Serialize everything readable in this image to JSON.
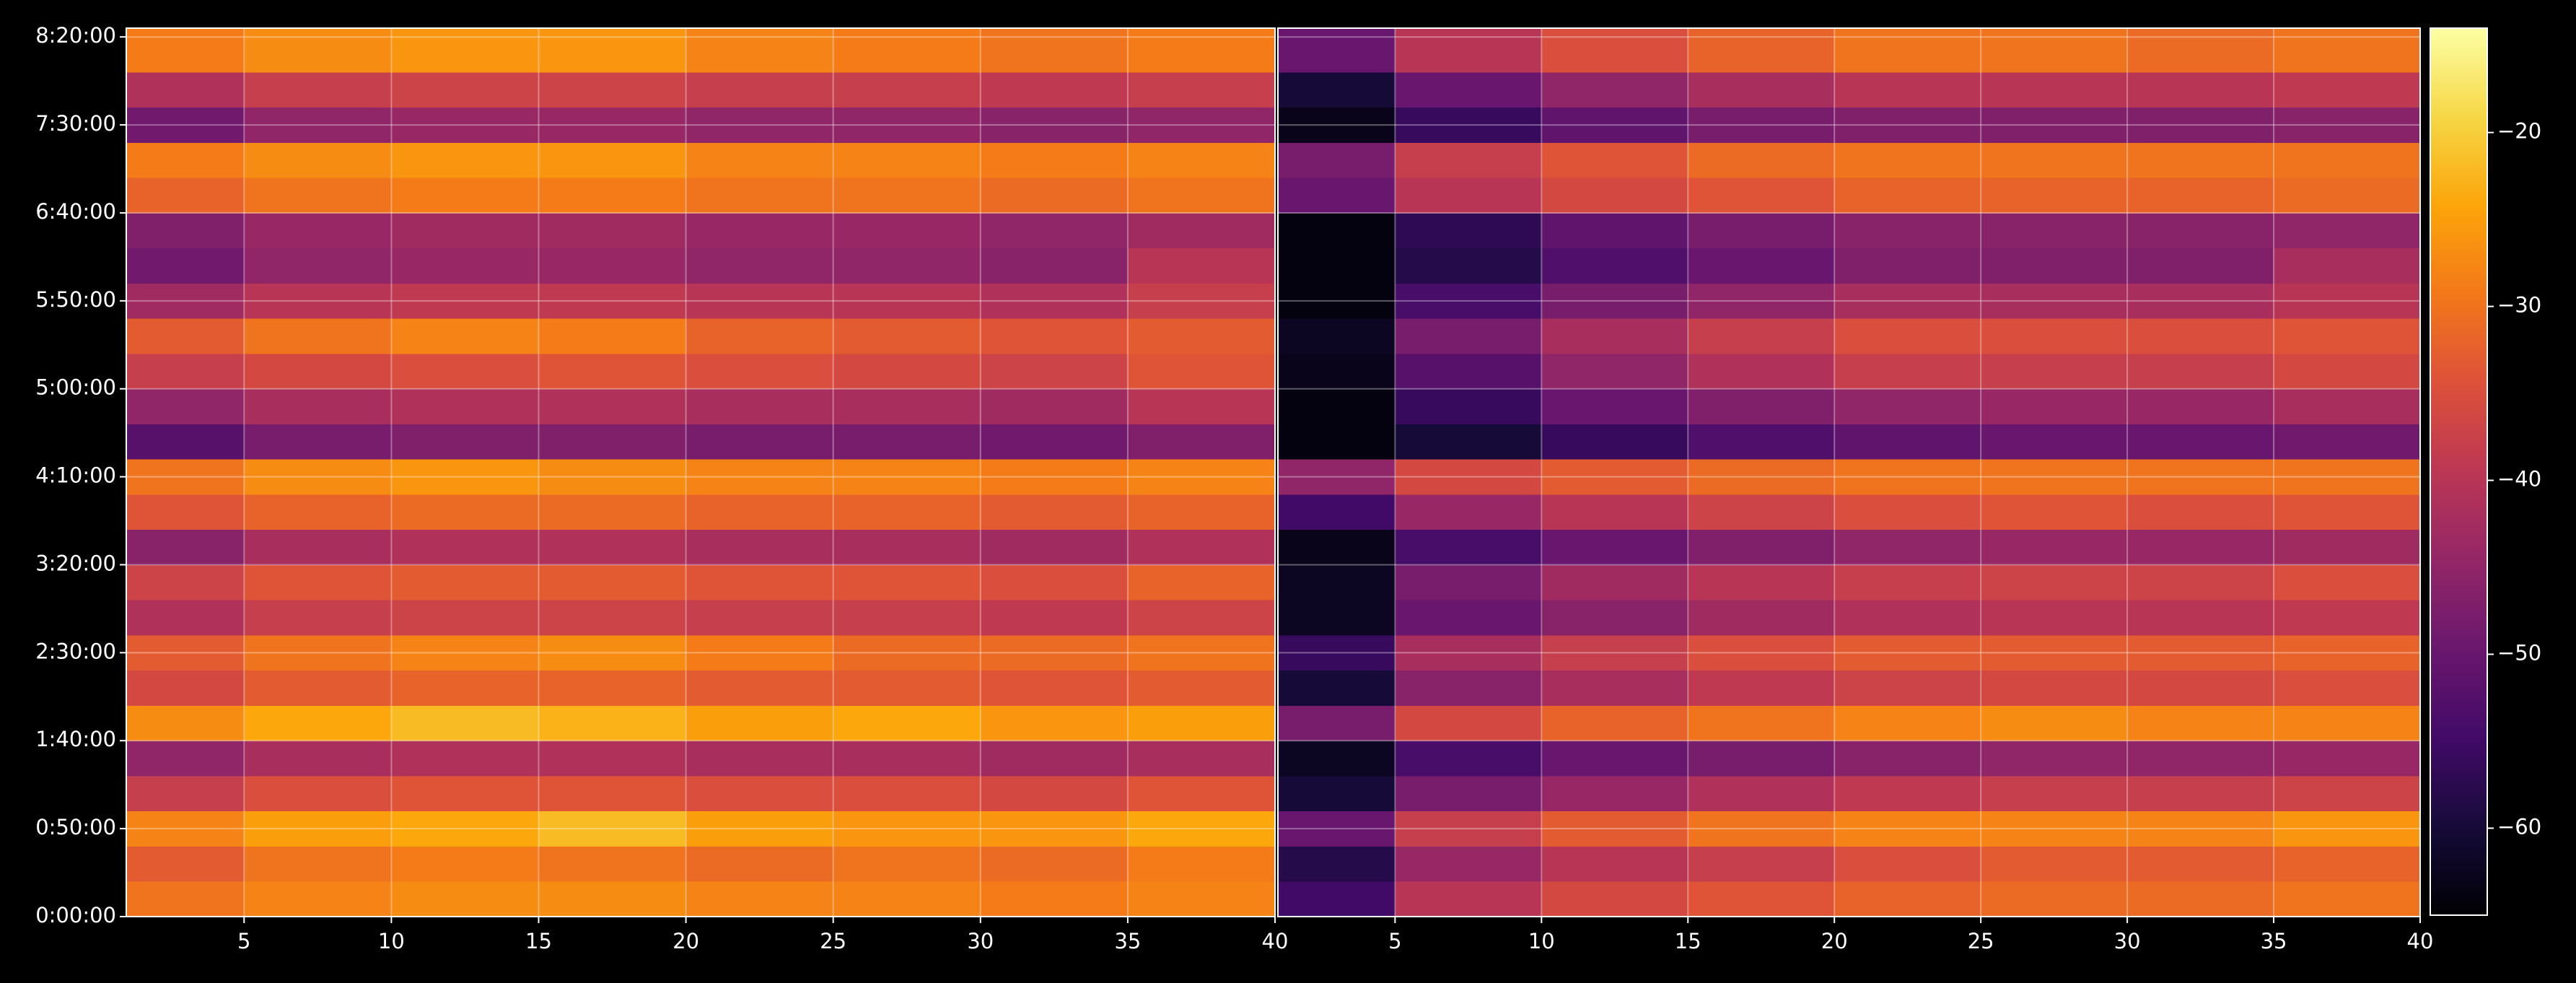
{
  "chart_data": {
    "type": "heatmap",
    "colormap": "inferno",
    "grid": true,
    "xlim": [
      1,
      40
    ],
    "xticks": [
      5,
      10,
      15,
      20,
      25,
      30,
      35,
      40
    ],
    "ylim": [
      0,
      30300
    ],
    "yticks": [
      {
        "value": 0,
        "label": "0:00:00"
      },
      {
        "value": 3000,
        "label": "0:50:00"
      },
      {
        "value": 6000,
        "label": "1:40:00"
      },
      {
        "value": 9000,
        "label": "2:30:00"
      },
      {
        "value": 12000,
        "label": "3:20:00"
      },
      {
        "value": 15000,
        "label": "4:10:00"
      },
      {
        "value": 18000,
        "label": "5:00:00"
      },
      {
        "value": 21000,
        "label": "5:50:00"
      },
      {
        "value": 24000,
        "label": "6:40:00"
      },
      {
        "value": 27000,
        "label": "7:30:00"
      },
      {
        "value": 30000,
        "label": "8:20:00"
      }
    ],
    "xbins": [
      1,
      5,
      10,
      15,
      20,
      25,
      30,
      35,
      40
    ],
    "ybins": [
      0,
      1200,
      2400,
      3600,
      4800,
      6000,
      7200,
      8400,
      9600,
      10800,
      12000,
      13200,
      14400,
      15600,
      16800,
      18000,
      19200,
      20400,
      21600,
      22800,
      24000,
      25200,
      26400,
      27600,
      28800,
      30300
    ],
    "panels": [
      {
        "values": [
          [
            -30,
            -28,
            -27,
            -27,
            -28,
            -28,
            -29,
            -28
          ],
          [
            -33,
            -30,
            -29,
            -30,
            -31,
            -30,
            -31,
            -29
          ],
          [
            -28,
            -25,
            -24,
            -22,
            -25,
            -26,
            -26,
            -24
          ],
          [
            -38,
            -35,
            -34,
            -34,
            -35,
            -35,
            -36,
            -34
          ],
          [
            -45,
            -42,
            -41,
            -41,
            -42,
            -42,
            -43,
            -42
          ],
          [
            -27,
            -24,
            -22,
            -23,
            -25,
            -24,
            -26,
            -25
          ],
          [
            -36,
            -33,
            -32,
            -32,
            -33,
            -33,
            -34,
            -33
          ],
          [
            -33,
            -30,
            -28,
            -27,
            -29,
            -31,
            -31,
            -30
          ],
          [
            -41,
            -38,
            -37,
            -37,
            -38,
            -38,
            -39,
            -37
          ],
          [
            -37,
            -34,
            -33,
            -33,
            -34,
            -34,
            -35,
            -32
          ],
          [
            -46,
            -42,
            -41,
            -41,
            -42,
            -42,
            -43,
            -41
          ],
          [
            -34,
            -32,
            -31,
            -31,
            -32,
            -32,
            -33,
            -32
          ],
          [
            -30,
            -27,
            -26,
            -27,
            -28,
            -28,
            -29,
            -28
          ],
          [
            -52,
            -48,
            -47,
            -47,
            -48,
            -48,
            -49,
            -47
          ],
          [
            -45,
            -42,
            -41,
            -41,
            -42,
            -42,
            -43,
            -40
          ],
          [
            -38,
            -36,
            -35,
            -34,
            -35,
            -36,
            -37,
            -34
          ],
          [
            -33,
            -30,
            -28,
            -29,
            -32,
            -33,
            -34,
            -33
          ],
          [
            -43,
            -40,
            -39,
            -39,
            -40,
            -40,
            -41,
            -38
          ],
          [
            -49,
            -45,
            -44,
            -44,
            -45,
            -45,
            -46,
            -40
          ],
          [
            -47,
            -44,
            -43,
            -43,
            -44,
            -44,
            -45,
            -43
          ],
          [
            -32,
            -30,
            -29,
            -29,
            -30,
            -30,
            -31,
            -30
          ],
          [
            -29,
            -27,
            -26,
            -26,
            -28,
            -28,
            -29,
            -28
          ],
          [
            -49,
            -45,
            -44,
            -44,
            -45,
            -45,
            -46,
            -45
          ],
          [
            -41,
            -38,
            -37,
            -37,
            -38,
            -38,
            -39,
            -38
          ],
          [
            -29,
            -27,
            -26,
            -26,
            -28,
            -29,
            -30,
            -29
          ]
        ]
      },
      {
        "values": [
          [
            -55,
            -40,
            -36,
            -34,
            -32,
            -31,
            -31,
            -30
          ],
          [
            -58,
            -44,
            -40,
            -38,
            -35,
            -33,
            -33,
            -32
          ],
          [
            -50,
            -38,
            -33,
            -30,
            -28,
            -28,
            -28,
            -26
          ],
          [
            -60,
            -48,
            -44,
            -41,
            -39,
            -38,
            -38,
            -37
          ],
          [
            -62,
            -54,
            -50,
            -48,
            -46,
            -45,
            -45,
            -44
          ],
          [
            -48,
            -36,
            -32,
            -30,
            -28,
            -27,
            -28,
            -28
          ],
          [
            -60,
            -46,
            -42,
            -39,
            -37,
            -36,
            -36,
            -35
          ],
          [
            -56,
            -42,
            -38,
            -35,
            -33,
            -33,
            -33,
            -32
          ],
          [
            -62,
            -50,
            -46,
            -43,
            -41,
            -40,
            -40,
            -39
          ],
          [
            -62,
            -48,
            -43,
            -40,
            -38,
            -37,
            -37,
            -35
          ],
          [
            -63,
            -54,
            -50,
            -47,
            -45,
            -44,
            -44,
            -43
          ],
          [
            -55,
            -44,
            -40,
            -37,
            -35,
            -34,
            -35,
            -34
          ],
          [
            -45,
            -36,
            -33,
            -31,
            -30,
            -30,
            -30,
            -30
          ],
          [
            -64,
            -60,
            -56,
            -53,
            -51,
            -50,
            -50,
            -49
          ],
          [
            -64,
            -56,
            -50,
            -47,
            -45,
            -44,
            -44,
            -42
          ],
          [
            -63,
            -52,
            -45,
            -41,
            -38,
            -38,
            -38,
            -36
          ],
          [
            -62,
            -48,
            -42,
            -38,
            -35,
            -35,
            -35,
            -34
          ],
          [
            -64,
            -54,
            -48,
            -45,
            -42,
            -42,
            -42,
            -40
          ],
          [
            -64,
            -58,
            -53,
            -50,
            -47,
            -47,
            -47,
            -42
          ],
          [
            -64,
            -57,
            -51,
            -48,
            -46,
            -46,
            -46,
            -45
          ],
          [
            -50,
            -40,
            -36,
            -34,
            -32,
            -32,
            -32,
            -31
          ],
          [
            -48,
            -38,
            -34,
            -31,
            -30,
            -30,
            -30,
            -30
          ],
          [
            -63,
            -56,
            -51,
            -48,
            -47,
            -47,
            -47,
            -46
          ],
          [
            -60,
            -50,
            -45,
            -42,
            -40,
            -40,
            -40,
            -39
          ],
          [
            -50,
            -40,
            -35,
            -32,
            -30,
            -30,
            -31,
            -30
          ]
        ]
      }
    ],
    "colorbar": {
      "clim": [
        -65,
        -14
      ],
      "ticks": [
        {
          "value": -60,
          "label": "−60"
        },
        {
          "value": -50,
          "label": "−50"
        },
        {
          "value": -40,
          "label": "−40"
        },
        {
          "value": -30,
          "label": "−30"
        },
        {
          "value": -20,
          "label": "−20"
        }
      ]
    }
  }
}
